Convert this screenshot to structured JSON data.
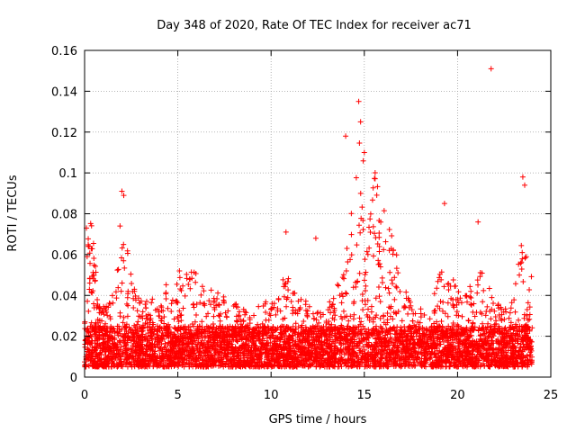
{
  "chart_data": {
    "type": "scatter",
    "title": "Day 348 of 2020, Rate Of TEC Index for receiver ac71",
    "xlabel": "GPS time / hours",
    "ylabel": "ROTI / TECUs",
    "xlim": [
      0,
      25
    ],
    "ylim": [
      0,
      0.16
    ],
    "x_ticks": [
      0,
      5,
      10,
      15,
      20,
      25
    ],
    "x_tick_labels": [
      "0",
      "5",
      "10",
      "15",
      "20",
      "25"
    ],
    "y_ticks": [
      0,
      0.02,
      0.04,
      0.06,
      0.08,
      0.1,
      0.12,
      0.14,
      0.16
    ],
    "y_tick_labels": [
      "0",
      "0.02",
      "0.04",
      "0.06",
      "0.08",
      "0.1",
      "0.12",
      "0.14",
      "0.16"
    ],
    "grid": true,
    "marker": "+",
    "marker_color": "#ff0000",
    "series": [
      {
        "name": "ROTI",
        "x_range": [
          0,
          24
        ],
        "baseline_band": [
          0.005,
          0.025
        ],
        "notable_points": [
          {
            "x": 0.1,
            "y": 0.073
          },
          {
            "x": 0.2,
            "y": 0.064
          },
          {
            "x": 2.0,
            "y": 0.091
          },
          {
            "x": 2.1,
            "y": 0.089
          },
          {
            "x": 1.9,
            "y": 0.074
          },
          {
            "x": 10.8,
            "y": 0.071
          },
          {
            "x": 12.4,
            "y": 0.068
          },
          {
            "x": 14.0,
            "y": 0.118
          },
          {
            "x": 14.7,
            "y": 0.135
          },
          {
            "x": 14.8,
            "y": 0.125
          },
          {
            "x": 15.0,
            "y": 0.11
          },
          {
            "x": 19.3,
            "y": 0.085
          },
          {
            "x": 21.1,
            "y": 0.076
          },
          {
            "x": 21.8,
            "y": 0.151
          },
          {
            "x": 23.5,
            "y": 0.098
          },
          {
            "x": 23.6,
            "y": 0.094
          }
        ]
      }
    ]
  }
}
